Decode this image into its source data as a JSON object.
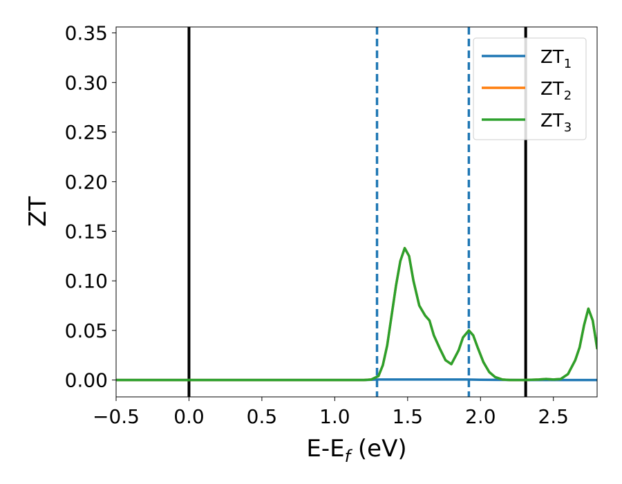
{
  "chart_data": {
    "type": "line",
    "xlabel_main": "E-E",
    "xlabel_sub": "f",
    "xlabel_unit": " (eV)",
    "ylabel": "ZT",
    "xlim": [
      -0.5,
      2.8
    ],
    "ylim": [
      -0.017,
      0.356
    ],
    "xticks": [
      {
        "value": -0.5,
        "label": "−0.5"
      },
      {
        "value": 0.0,
        "label": "0.0"
      },
      {
        "value": 0.5,
        "label": "0.5"
      },
      {
        "value": 1.0,
        "label": "1.0"
      },
      {
        "value": 1.5,
        "label": "1.5"
      },
      {
        "value": 2.0,
        "label": "2.0"
      },
      {
        "value": 2.5,
        "label": "2.5"
      }
    ],
    "yticks": [
      {
        "value": 0.0,
        "label": "0.00"
      },
      {
        "value": 0.05,
        "label": "0.05"
      },
      {
        "value": 0.1,
        "label": "0.10"
      },
      {
        "value": 0.15,
        "label": "0.15"
      },
      {
        "value": 0.2,
        "label": "0.20"
      },
      {
        "value": 0.25,
        "label": "0.25"
      },
      {
        "value": 0.3,
        "label": "0.30"
      },
      {
        "value": 0.35,
        "label": "0.35"
      }
    ],
    "grid": false,
    "legend_position": "top-right",
    "vlines": [
      {
        "x": 0.0,
        "style": "solid",
        "color": "#000000"
      },
      {
        "x": 2.31,
        "style": "solid",
        "color": "#000000"
      },
      {
        "x": 1.29,
        "style": "dashed",
        "color": "#1f77b4"
      },
      {
        "x": 1.92,
        "style": "dashed",
        "color": "#1f77b4"
      }
    ],
    "series": [
      {
        "name": "ZT",
        "name_sub": "1",
        "color": "#1f77b4",
        "x": [
          -0.5,
          0.0,
          1.2,
          1.3,
          1.6,
          1.9,
          2.0,
          2.3,
          2.6,
          2.8
        ],
        "y": [
          0.0,
          0.0,
          0.0,
          0.0005,
          0.0005,
          0.0005,
          0.0003,
          0.0,
          0.0,
          0.0
        ]
      },
      {
        "name": "ZT",
        "name_sub": "2",
        "color": "#ff7f0e",
        "x": [
          -0.5,
          0.0,
          1.0,
          1.2,
          1.25,
          1.3,
          1.33,
          1.36,
          1.39,
          1.42,
          1.45,
          1.48,
          1.51,
          1.54,
          1.58,
          1.62,
          1.65,
          1.68,
          1.72,
          1.76,
          1.8,
          1.85,
          1.88,
          1.92,
          1.95,
          1.98,
          2.02,
          2.06,
          2.1,
          2.15,
          2.2,
          2.3,
          2.4,
          2.45,
          2.5,
          2.55,
          2.6,
          2.65,
          2.68,
          2.71,
          2.74,
          2.77,
          2.8
        ],
        "y": [
          0.0,
          0.0,
          0.0,
          0.0,
          0.0005,
          0.004,
          0.015,
          0.035,
          0.065,
          0.095,
          0.12,
          0.133,
          0.125,
          0.1,
          0.075,
          0.065,
          0.06,
          0.045,
          0.032,
          0.02,
          0.016,
          0.03,
          0.043,
          0.05,
          0.045,
          0.033,
          0.018,
          0.008,
          0.003,
          0.0005,
          0.0,
          0.0,
          0.0005,
          0.001,
          0.0005,
          0.001,
          0.006,
          0.02,
          0.033,
          0.055,
          0.072,
          0.06,
          0.032
        ]
      },
      {
        "name": "ZT",
        "name_sub": "3",
        "color": "#2ca02c",
        "x": [
          -0.5,
          0.0,
          1.0,
          1.2,
          1.25,
          1.3,
          1.33,
          1.36,
          1.39,
          1.42,
          1.45,
          1.48,
          1.51,
          1.54,
          1.58,
          1.62,
          1.65,
          1.68,
          1.72,
          1.76,
          1.8,
          1.85,
          1.88,
          1.92,
          1.95,
          1.98,
          2.02,
          2.06,
          2.1,
          2.15,
          2.2,
          2.3,
          2.4,
          2.45,
          2.5,
          2.55,
          2.6,
          2.65,
          2.68,
          2.71,
          2.74,
          2.77,
          2.8
        ],
        "y": [
          0.0,
          0.0,
          0.0,
          0.0,
          0.0005,
          0.004,
          0.015,
          0.035,
          0.065,
          0.095,
          0.12,
          0.133,
          0.125,
          0.1,
          0.075,
          0.065,
          0.06,
          0.045,
          0.032,
          0.02,
          0.016,
          0.03,
          0.043,
          0.05,
          0.045,
          0.033,
          0.018,
          0.008,
          0.003,
          0.0005,
          0.0,
          0.0,
          0.0005,
          0.001,
          0.0005,
          0.001,
          0.006,
          0.02,
          0.033,
          0.055,
          0.072,
          0.06,
          0.032
        ]
      }
    ]
  }
}
